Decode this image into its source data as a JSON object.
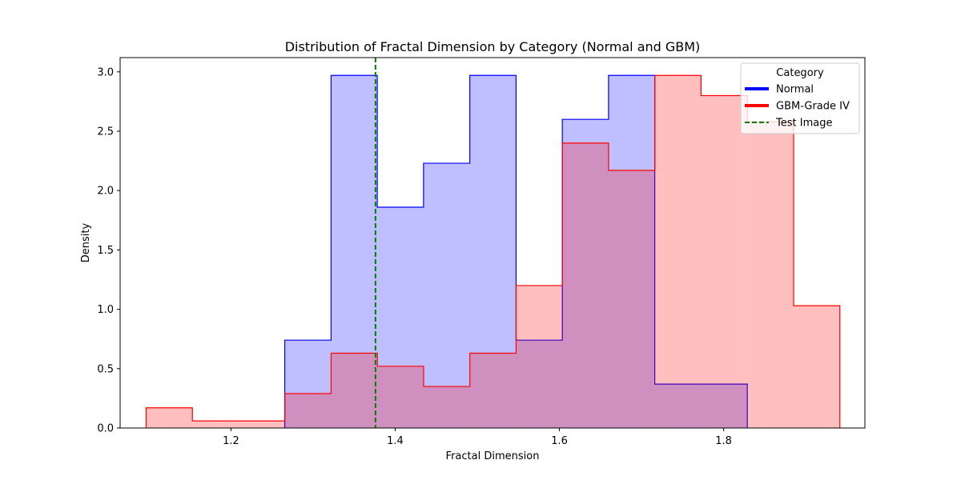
{
  "chart_data": {
    "type": "area",
    "histtype": "step-filled",
    "title": "Distribution of Fractal Dimension by Category (Normal and GBM)",
    "xlabel": "Fractal Dimension",
    "ylabel": "Density",
    "xlim": [
      1.065,
      1.972
    ],
    "ylim": [
      0,
      3.12
    ],
    "xticks": [
      1.2,
      1.4,
      1.6,
      1.8
    ],
    "xtick_labels": [
      "1.2",
      "1.4",
      "1.6",
      "1.8"
    ],
    "yticks": [
      0,
      0.5,
      1.0,
      1.5,
      2.0,
      2.5,
      3.0
    ],
    "ytick_labels": [
      "0.0",
      "0.5",
      "1.0",
      "1.5",
      "2.0",
      "2.5",
      "3.0"
    ],
    "grid": false,
    "series": [
      {
        "name": "Normal",
        "line_color": "#0000ff",
        "fill_color": "#0000ff",
        "fill_alpha": 0.25,
        "bin_edges": [
          1.2655,
          1.3219,
          1.3782,
          1.4345,
          1.4908,
          1.5472,
          1.6035,
          1.6598,
          1.7161,
          1.7725,
          1.8288
        ],
        "values": [
          0.74,
          2.97,
          1.86,
          2.23,
          2.97,
          0.74,
          2.6,
          2.97,
          0.37,
          0.37
        ]
      },
      {
        "name": "GBM-Grade IV",
        "line_color": "#ff0000",
        "fill_color": "#ff0000",
        "fill_alpha": 0.25,
        "bin_edges": [
          1.0966,
          1.153,
          1.2093,
          1.2656,
          1.3219,
          1.3783,
          1.4346,
          1.4909,
          1.5472,
          1.6036,
          1.6599,
          1.7162,
          1.7725,
          1.8289,
          1.8852,
          1.9415
        ],
        "values": [
          0.17,
          0.06,
          0.06,
          0.29,
          0.63,
          0.52,
          0.35,
          0.63,
          1.2,
          2.4,
          2.17,
          2.97,
          2.8,
          2.58,
          1.03
        ]
      }
    ],
    "vline": {
      "name": "Test Image",
      "x": 1.376,
      "color": "#008000",
      "style": "dashed"
    },
    "legend": {
      "title": "Category",
      "placement": "top-right",
      "entries": [
        {
          "label": "Normal",
          "color": "#0000ff",
          "style": "solid"
        },
        {
          "label": "GBM-Grade IV",
          "color": "#ff0000",
          "style": "solid"
        },
        {
          "label": "Test Image",
          "color": "#008000",
          "style": "dashed"
        }
      ]
    }
  }
}
